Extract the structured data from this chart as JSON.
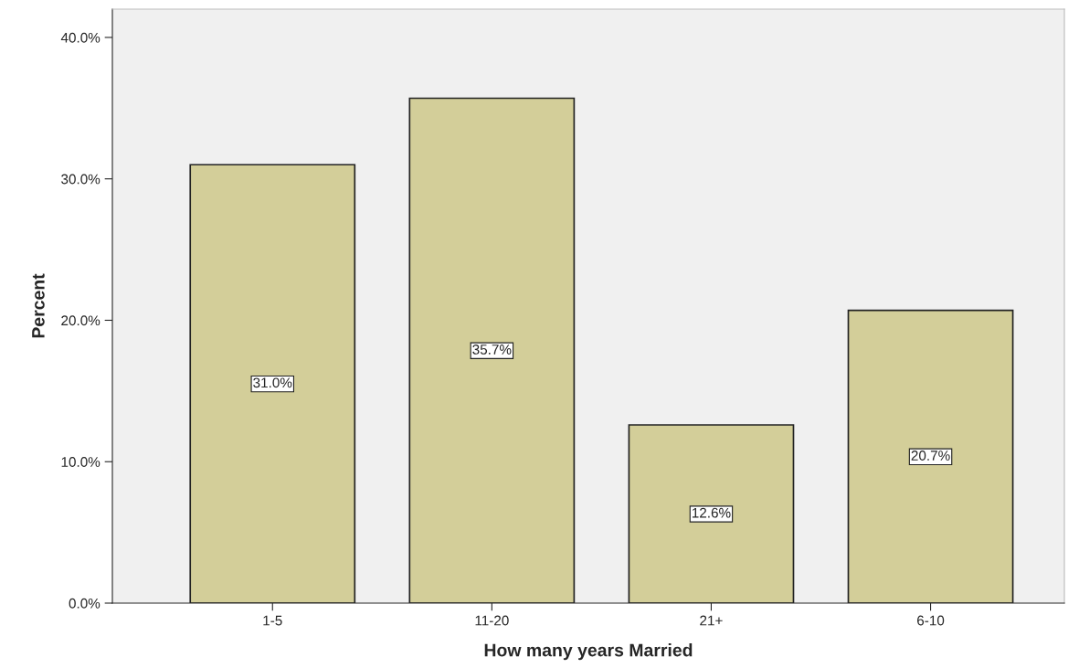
{
  "chart_data": {
    "type": "bar",
    "xlabel": "How many years Married",
    "ylabel": "Percent",
    "categories": [
      "1-5",
      "11-20",
      "21+",
      "6-10"
    ],
    "values": [
      31.0,
      35.7,
      12.6,
      20.7
    ],
    "value_labels": [
      "31.0%",
      "35.7%",
      "12.6%",
      "20.7%"
    ],
    "color": "#d3ce99",
    "ylim": [
      0,
      42
    ],
    "yticks": [
      {
        "value": 0,
        "label": "0.0%"
      },
      {
        "value": 10,
        "label": "10.0%"
      },
      {
        "value": 20,
        "label": "20.0%"
      },
      {
        "value": 30,
        "label": "30.0%"
      },
      {
        "value": 40,
        "label": "40.0%"
      }
    ],
    "grid": false,
    "legend": false
  }
}
